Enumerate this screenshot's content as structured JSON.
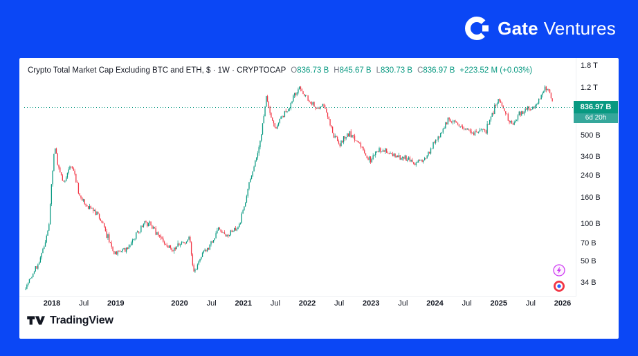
{
  "colors": {
    "brand_blue": "#0B47F5",
    "up": "#089981",
    "down": "#F23645",
    "text_dark": "#131722",
    "text_gray": "#787B86",
    "countdown_bg": "#35A79B"
  },
  "header": {
    "brand_bold": "Gate",
    "brand_light": "Ventures"
  },
  "chart": {
    "legend": {
      "title": "Crypto Total Market Cap Excluding BTC and ETH, $ · 1W · CRYPTOCAP",
      "ohlc": [
        {
          "k": "O",
          "v": "836.73 B"
        },
        {
          "k": "H",
          "v": "845.67 B"
        },
        {
          "k": "L",
          "v": "830.73 B"
        },
        {
          "k": "C",
          "v": "836.97 B"
        }
      ],
      "change": "+223.52 M (+0.03%)"
    },
    "price_label": {
      "value": "836.97 B",
      "countdown": "6d 20h"
    }
  },
  "chart_data": {
    "type": "candlestick",
    "title": "Crypto Total Market Cap Excluding BTC and ETH",
    "symbol": "CRYPTOCAP",
    "interval": "1W",
    "currency_unit": "$",
    "value_unit": "billions USD",
    "y_scale": "log",
    "grid": "off",
    "current": {
      "open": 836.73,
      "high": 845.67,
      "low": 830.73,
      "close": 836.97,
      "change_abs": "+223.52 M",
      "change_pct": "+0.03%"
    },
    "y_ticks": [
      {
        "label": "1.8 T",
        "value": 1800
      },
      {
        "label": "1.2 T",
        "value": 1200
      },
      {
        "label": "500 B",
        "value": 500
      },
      {
        "label": "340 B",
        "value": 340
      },
      {
        "label": "240 B",
        "value": 240
      },
      {
        "label": "160 B",
        "value": 160
      },
      {
        "label": "100 B",
        "value": 100
      },
      {
        "label": "70 B",
        "value": 70
      },
      {
        "label": "50 B",
        "value": 50
      },
      {
        "label": "34 B",
        "value": 34
      }
    ],
    "x_ticks": [
      {
        "label": "2018",
        "t": 2018,
        "major": true
      },
      {
        "label": "Jul",
        "t": 2018.5,
        "major": false
      },
      {
        "label": "2019",
        "t": 2019,
        "major": true
      },
      {
        "label": "2020",
        "t": 2020,
        "major": true
      },
      {
        "label": "Jul",
        "t": 2020.5,
        "major": false
      },
      {
        "label": "2021",
        "t": 2021,
        "major": true
      },
      {
        "label": "Jul",
        "t": 2021.5,
        "major": false
      },
      {
        "label": "2022",
        "t": 2022,
        "major": true
      },
      {
        "label": "Jul",
        "t": 2022.5,
        "major": false
      },
      {
        "label": "2023",
        "t": 2023,
        "major": true
      },
      {
        "label": "Jul",
        "t": 2023.5,
        "major": false
      },
      {
        "label": "2024",
        "t": 2024,
        "major": true
      },
      {
        "label": "Jul",
        "t": 2024.5,
        "major": false
      },
      {
        "label": "2025",
        "t": 2025,
        "major": true
      },
      {
        "label": "Jul",
        "t": 2025.5,
        "major": false
      },
      {
        "label": "2026",
        "t": 2026,
        "major": true
      }
    ],
    "anchors": [
      [
        2017.57,
        30
      ],
      [
        2017.7,
        40
      ],
      [
        2017.85,
        58
      ],
      [
        2017.95,
        95
      ],
      [
        2018.04,
        420
      ],
      [
        2018.1,
        280
      ],
      [
        2018.18,
        205
      ],
      [
        2018.27,
        280
      ],
      [
        2018.34,
        260
      ],
      [
        2018.45,
        160
      ],
      [
        2018.58,
        135
      ],
      [
        2018.72,
        120
      ],
      [
        2018.87,
        78
      ],
      [
        2019.0,
        56
      ],
      [
        2019.15,
        62
      ],
      [
        2019.3,
        78
      ],
      [
        2019.45,
        102
      ],
      [
        2019.6,
        92
      ],
      [
        2019.75,
        70
      ],
      [
        2019.9,
        62
      ],
      [
        2020.05,
        72
      ],
      [
        2020.16,
        76
      ],
      [
        2020.22,
        40
      ],
      [
        2020.35,
        56
      ],
      [
        2020.5,
        70
      ],
      [
        2020.62,
        92
      ],
      [
        2020.75,
        82
      ],
      [
        2020.9,
        92
      ],
      [
        2021.0,
        125
      ],
      [
        2021.08,
        200
      ],
      [
        2021.16,
        290
      ],
      [
        2021.24,
        380
      ],
      [
        2021.3,
        620
      ],
      [
        2021.36,
        1020
      ],
      [
        2021.42,
        720
      ],
      [
        2021.5,
        560
      ],
      [
        2021.58,
        640
      ],
      [
        2021.66,
        790
      ],
      [
        2021.75,
        920
      ],
      [
        2021.84,
        1180
      ],
      [
        2021.88,
        1230
      ],
      [
        2021.95,
        1060
      ],
      [
        2022.05,
        940
      ],
      [
        2022.15,
        830
      ],
      [
        2022.25,
        890
      ],
      [
        2022.33,
        700
      ],
      [
        2022.4,
        520
      ],
      [
        2022.5,
        430
      ],
      [
        2022.6,
        490
      ],
      [
        2022.68,
        520
      ],
      [
        2022.76,
        450
      ],
      [
        2022.85,
        410
      ],
      [
        2022.92,
        330
      ],
      [
        2023.0,
        325
      ],
      [
        2023.1,
        380
      ],
      [
        2023.2,
        388
      ],
      [
        2023.32,
        358
      ],
      [
        2023.45,
        340
      ],
      [
        2023.58,
        326
      ],
      [
        2023.7,
        305
      ],
      [
        2023.8,
        318
      ],
      [
        2023.9,
        360
      ],
      [
        2023.97,
        430
      ],
      [
        2024.06,
        490
      ],
      [
        2024.16,
        610
      ],
      [
        2024.22,
        680
      ],
      [
        2024.3,
        640
      ],
      [
        2024.4,
        600
      ],
      [
        2024.5,
        558
      ],
      [
        2024.6,
        515
      ],
      [
        2024.7,
        560
      ],
      [
        2024.8,
        540
      ],
      [
        2024.88,
        690
      ],
      [
        2024.95,
        900
      ],
      [
        2025.0,
        960
      ],
      [
        2025.06,
        860
      ],
      [
        2025.13,
        705
      ],
      [
        2025.2,
        625
      ],
      [
        2025.3,
        700
      ],
      [
        2025.38,
        780
      ],
      [
        2025.46,
        850
      ],
      [
        2025.52,
        805
      ],
      [
        2025.6,
        950
      ],
      [
        2025.68,
        1060
      ],
      [
        2025.73,
        1190
      ],
      [
        2025.78,
        1150
      ],
      [
        2025.83,
        1000
      ],
      [
        2025.87,
        837
      ]
    ]
  },
  "icons": {
    "gate_logo": "circle-with-notch-and-square-dot",
    "tradingview_logo": "tv-monogram",
    "sticker_top": "lightning-emoji-badge",
    "sticker_bottom": "target-emoji-badge"
  },
  "footer": {
    "attribution": "TradingView"
  }
}
